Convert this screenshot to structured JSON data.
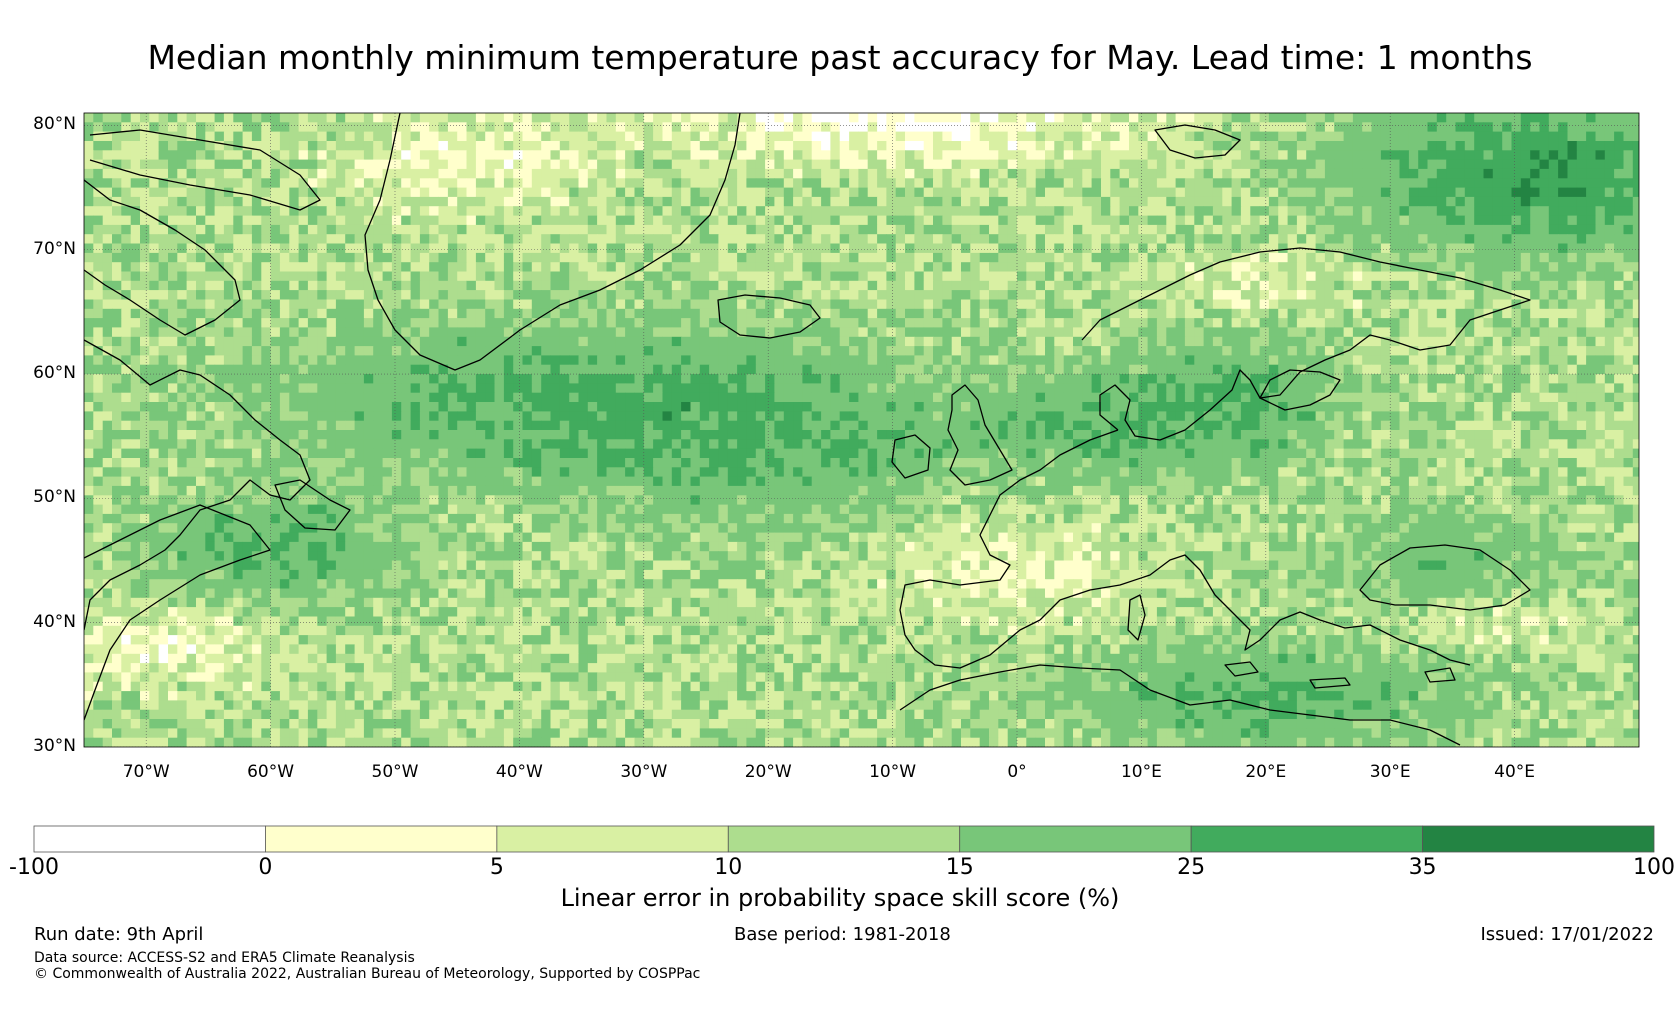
{
  "title": "Median monthly minimum temperature past accuracy for May. Lead time: 1 months",
  "map": {
    "lat_labels": [
      "80°N",
      "70°N",
      "60°N",
      "50°N",
      "40°N",
      "30°N"
    ],
    "lon_labels": [
      "70°W",
      "60°W",
      "50°W",
      "40°W",
      "30°W",
      "20°W",
      "10°W",
      "0°",
      "10°E",
      "20°E",
      "30°E",
      "40°E"
    ],
    "extent": {
      "lon_min": -75,
      "lon_max": 50,
      "lat_min": 30,
      "lat_max": 81
    },
    "grid": "on"
  },
  "colorbar": {
    "ticks": [
      "-100",
      "0",
      "5",
      "10",
      "15",
      "25",
      "35",
      "100"
    ],
    "colors": [
      "#ffffff",
      "#ffffcc",
      "#d9f0a3",
      "#addd8e",
      "#78c679",
      "#41ab5d",
      "#238443"
    ],
    "label": "Linear error in probability space skill score (%)"
  },
  "footer": {
    "run_date": "Run date: 9th April",
    "base_period": "Base period: 1981-2018",
    "issued": "Issued: 17/01/2022",
    "data_source": "Data source: ACCESS-S2 and ERA5 Climate Reanalysis",
    "copyright": "© Commonwealth of Australia 2022, Australian Bureau of Meteorology, Supported by COSPPac"
  }
}
